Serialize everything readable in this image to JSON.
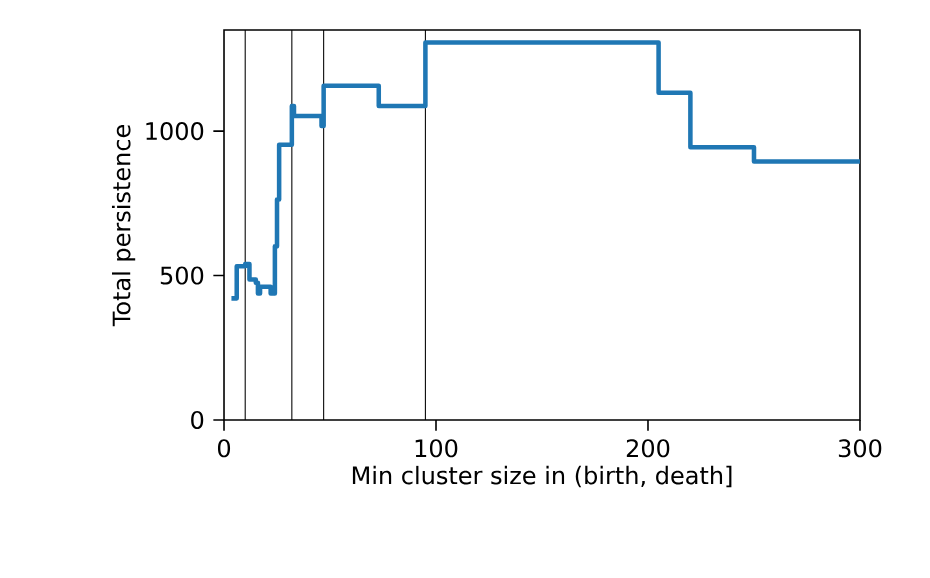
{
  "chart_data": {
    "type": "step",
    "xlabel": "Min cluster size in (birth, death]",
    "ylabel": "Total persistence",
    "x": [
      3.5,
      6,
      10,
      12,
      15,
      16,
      17,
      22,
      24,
      25,
      26,
      32,
      33,
      46,
      47,
      73,
      95,
      205,
      220,
      250,
      300
    ],
    "values": [
      421,
      532,
      540,
      486,
      475,
      438,
      461,
      438,
      601,
      763,
      953,
      1087,
      1052,
      1018,
      1157,
      1087,
      1307,
      1133,
      944,
      895,
      895
    ],
    "color": "#1f77b4",
    "xlim": [
      0,
      300
    ],
    "ylim": [
      0,
      1350
    ],
    "xticks": [
      0,
      100,
      200,
      300
    ],
    "yticks": [
      0,
      500,
      1000
    ],
    "ref_lines": [
      {
        "axis": "x",
        "value": 10,
        "color": "#000000"
      },
      {
        "axis": "x",
        "value": 32,
        "color": "#000000"
      },
      {
        "axis": "x",
        "value": 47,
        "color": "#000000"
      },
      {
        "axis": "x",
        "value": 95,
        "color": "#000000"
      }
    ],
    "marker": "none",
    "line_style": "solid"
  }
}
